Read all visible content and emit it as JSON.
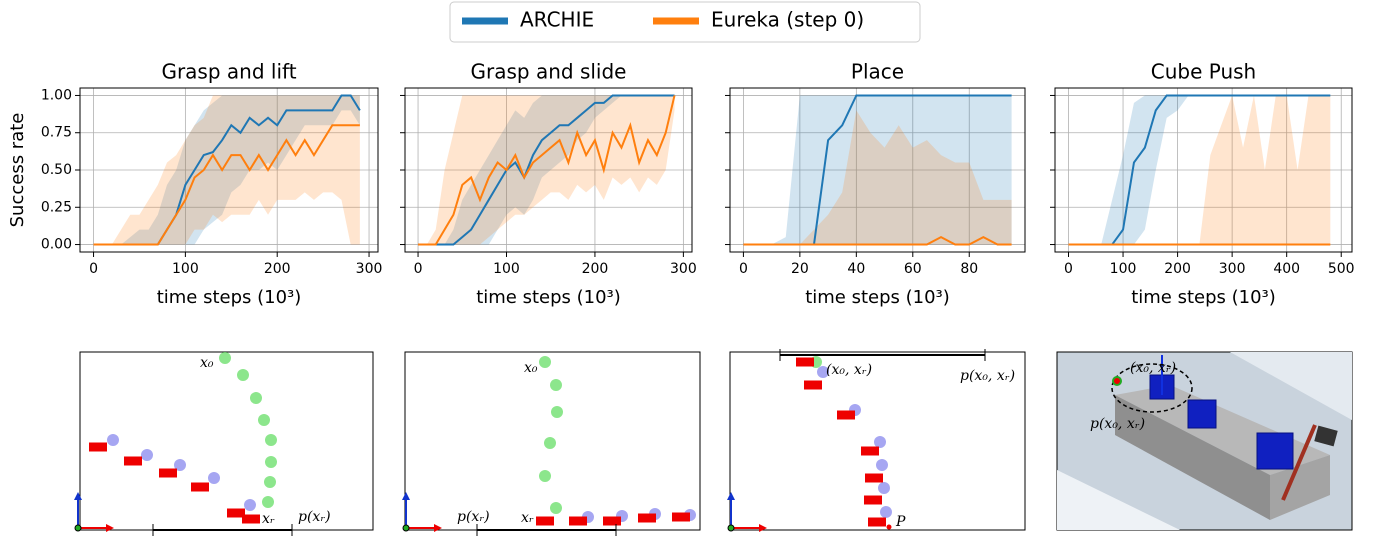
{
  "chart_data": [
    {
      "type": "line",
      "title": "Grasp and lift",
      "xlabel": "time steps (10³)",
      "ylabel": "Success rate",
      "x": [
        0,
        10,
        20,
        30,
        40,
        50,
        60,
        70,
        80,
        90,
        100,
        110,
        120,
        130,
        140,
        150,
        160,
        170,
        180,
        190,
        200,
        210,
        220,
        230,
        240,
        250,
        260,
        270,
        280,
        290
      ],
      "xlim": [
        -14.75,
        309.75
      ],
      "xticks": [
        0,
        100,
        200,
        300
      ],
      "ylim": [
        -0.05,
        1.05
      ],
      "yticks": [
        {
          "value": 0,
          "label": "0.00"
        },
        {
          "value": 0.25,
          "label": "0.25"
        },
        {
          "value": 0.5,
          "label": "0.50"
        },
        {
          "value": 0.75,
          "label": "0.75"
        },
        {
          "value": 1,
          "label": "1.00"
        }
      ],
      "grid": true,
      "series": [
        {
          "name": "ARCHIE",
          "color": "#1f77b4",
          "values": [
            0,
            0,
            0,
            0,
            0,
            0,
            0,
            0,
            0.1,
            0.2,
            0.4,
            0.5,
            0.6,
            0.62,
            0.7,
            0.8,
            0.75,
            0.85,
            0.8,
            0.85,
            0.8,
            0.9,
            0.9,
            0.9,
            0.9,
            0.9,
            0.9,
            1,
            1,
            0.9
          ],
          "lower": [
            0,
            0,
            0,
            0,
            0,
            0,
            0,
            0,
            0,
            0,
            0,
            0,
            0.1,
            0.15,
            0.2,
            0.35,
            0.4,
            0.5,
            0.5,
            0.55,
            0.5,
            0.6,
            0.7,
            0.8,
            0.8,
            0.8,
            0.8,
            0.9,
            0.9,
            0.8
          ],
          "upper": [
            0,
            0,
            0,
            0,
            0.05,
            0.1,
            0.1,
            0.2,
            0.4,
            0.5,
            0.7,
            0.8,
            0.9,
            0.95,
            1,
            1,
            1,
            1,
            1,
            1,
            1,
            1,
            1,
            1,
            1,
            1,
            1,
            1,
            1,
            1
          ]
        },
        {
          "name": "Eureka (step 0)",
          "color": "#ff7f0e",
          "values": [
            0,
            0,
            0,
            0,
            0,
            0,
            0,
            0,
            0.1,
            0.2,
            0.3,
            0.45,
            0.5,
            0.6,
            0.5,
            0.6,
            0.6,
            0.5,
            0.6,
            0.5,
            0.6,
            0.7,
            0.6,
            0.7,
            0.6,
            0.7,
            0.8,
            0.8,
            0.8,
            0.8
          ],
          "lower": [
            0,
            0,
            0,
            0,
            0,
            0,
            0,
            0,
            0,
            0,
            0,
            0.1,
            0.1,
            0.2,
            0.15,
            0.2,
            0.2,
            0.2,
            0.3,
            0.2,
            0.3,
            0.3,
            0.3,
            0.35,
            0.3,
            0.35,
            0.35,
            0.3,
            0,
            0
          ],
          "upper": [
            0,
            0,
            0,
            0.1,
            0.2,
            0.2,
            0.3,
            0.4,
            0.55,
            0.6,
            0.7,
            0.8,
            0.85,
            1,
            1,
            1,
            1,
            1,
            1,
            1,
            1,
            1,
            1,
            1,
            1,
            1,
            1,
            1,
            1,
            1
          ]
        }
      ]
    },
    {
      "type": "line",
      "title": "Grasp and slide",
      "xlabel": "time steps (10³)",
      "x": [
        0,
        10,
        20,
        30,
        40,
        50,
        60,
        70,
        80,
        90,
        100,
        110,
        120,
        130,
        140,
        150,
        160,
        170,
        180,
        190,
        200,
        210,
        220,
        230,
        240,
        250,
        260,
        270,
        280,
        290
      ],
      "xlim": [
        -14.75,
        309.75
      ],
      "xticks": [
        0,
        100,
        200,
        300
      ],
      "ylim": [
        -0.05,
        1.05
      ],
      "yticks": [
        0,
        0.25,
        0.5,
        0.75,
        1
      ],
      "grid": true,
      "series": [
        {
          "color": "#1f77b4",
          "values": [
            0,
            0,
            0,
            0,
            0,
            0.05,
            0.1,
            0.2,
            0.3,
            0.4,
            0.5,
            0.55,
            0.45,
            0.6,
            0.7,
            0.75,
            0.8,
            0.8,
            0.85,
            0.9,
            0.95,
            0.95,
            1,
            1,
            1,
            1,
            1,
            1,
            1,
            1
          ],
          "lower": [
            0,
            0,
            0,
            0,
            0,
            0,
            0,
            0,
            0,
            0.1,
            0.2,
            0.25,
            0.2,
            0.3,
            0.45,
            0.5,
            0.55,
            0.6,
            0.7,
            0.75,
            0.85,
            0.9,
            0.95,
            1,
            1,
            1,
            1,
            1,
            1,
            1
          ],
          "upper": [
            0,
            0,
            0,
            0,
            0.1,
            0.3,
            0.4,
            0.5,
            0.6,
            0.7,
            0.8,
            0.9,
            0.85,
            0.95,
            1,
            1,
            1,
            1,
            1,
            1,
            1,
            1,
            1,
            1,
            1,
            1,
            1,
            1,
            1,
            1
          ]
        },
        {
          "color": "#ff7f0e",
          "values": [
            0,
            0,
            0,
            0.1,
            0.2,
            0.4,
            0.45,
            0.3,
            0.45,
            0.55,
            0.5,
            0.6,
            0.45,
            0.55,
            0.6,
            0.65,
            0.7,
            0.55,
            0.75,
            0.6,
            0.7,
            0.5,
            0.75,
            0.65,
            0.8,
            0.55,
            0.7,
            0.6,
            0.75,
            1
          ],
          "lower": [
            0,
            0,
            0,
            0,
            0,
            0,
            0,
            0,
            0.05,
            0.1,
            0.15,
            0.2,
            0.2,
            0.25,
            0.3,
            0.35,
            0.35,
            0.3,
            0.4,
            0.35,
            0.4,
            0.3,
            0.45,
            0.4,
            0.45,
            0.35,
            0.45,
            0.4,
            0.5,
            0.9
          ],
          "upper": [
            0,
            0,
            0.1,
            0.5,
            0.75,
            1,
            1,
            1,
            1,
            1,
            1,
            1,
            1,
            1,
            1,
            1,
            1,
            1,
            1,
            1,
            1,
            1,
            1,
            1,
            1,
            1,
            1,
            1,
            1,
            1
          ]
        }
      ]
    },
    {
      "type": "line",
      "title": "Place",
      "xlabel": "time steps (10³)",
      "x": [
        0,
        5,
        10,
        15,
        20,
        25,
        30,
        35,
        40,
        45,
        50,
        55,
        60,
        65,
        70,
        75,
        80,
        85,
        90,
        95
      ],
      "xlim": [
        -4.75,
        99.75
      ],
      "xticks": [
        0,
        20,
        40,
        60,
        80
      ],
      "ylim": [
        -0.05,
        1.05
      ],
      "yticks": [
        0,
        0.25,
        0.5,
        0.75,
        1
      ],
      "grid": true,
      "series": [
        {
          "color": "#1f77b4",
          "values": [
            0,
            0,
            0,
            0,
            0,
            0,
            0.7,
            0.8,
            1,
            1,
            1,
            1,
            1,
            1,
            1,
            1,
            1,
            1,
            1,
            1
          ],
          "lower": [
            0,
            0,
            0,
            0,
            0,
            0,
            0,
            0,
            0,
            0,
            0,
            0,
            0,
            0,
            0,
            0,
            0,
            0,
            0,
            0
          ],
          "upper": [
            0,
            0,
            0,
            0.05,
            1,
            1,
            1,
            1,
            1,
            1,
            1,
            1,
            1,
            1,
            1,
            1,
            1,
            1,
            1,
            1
          ]
        },
        {
          "color": "#ff7f0e",
          "values": [
            0,
            0,
            0,
            0,
            0,
            0,
            0,
            0,
            0,
            0,
            0,
            0,
            0,
            0,
            0.05,
            0,
            0,
            0.05,
            0,
            0
          ],
          "lower": [
            0,
            0,
            0,
            0,
            0,
            0,
            0,
            0,
            0,
            0,
            0,
            0,
            0,
            0,
            0,
            0,
            0,
            0,
            0,
            0
          ],
          "upper": [
            0,
            0,
            0,
            0,
            0,
            0.1,
            0.2,
            0.35,
            0.9,
            0.75,
            0.65,
            0.8,
            0.65,
            0.7,
            0.6,
            0.55,
            0.55,
            0.3,
            0.3,
            0.3
          ]
        }
      ]
    },
    {
      "type": "line",
      "title": "Cube Push",
      "xlabel": "time steps (10³)",
      "x": [
        0,
        20,
        40,
        60,
        80,
        100,
        120,
        140,
        160,
        180,
        200,
        220,
        240,
        260,
        280,
        300,
        320,
        340,
        360,
        380,
        400,
        420,
        440,
        460,
        480
      ],
      "xlim": [
        -24.75,
        519.75
      ],
      "xticks": [
        0,
        100,
        200,
        300,
        400,
        500
      ],
      "ylim": [
        -0.05,
        1.05
      ],
      "yticks": [
        0,
        0.25,
        0.5,
        0.75,
        1
      ],
      "grid": true,
      "series": [
        {
          "color": "#1f77b4",
          "values": [
            0,
            0,
            0,
            0,
            0,
            0.1,
            0.55,
            0.65,
            0.9,
            1,
            1,
            1,
            1,
            1,
            1,
            1,
            1,
            1,
            1,
            1,
            1,
            1,
            1,
            1,
            1
          ],
          "lower": [
            0,
            0,
            0,
            0,
            0,
            0,
            0,
            0.1,
            0.5,
            0.85,
            0.9,
            1,
            1,
            1,
            1,
            1,
            1,
            1,
            1,
            1,
            1,
            1,
            1,
            1,
            1
          ],
          "upper": [
            0,
            0,
            0,
            0,
            0.3,
            0.6,
            0.95,
            1,
            1,
            1,
            1,
            1,
            1,
            1,
            1,
            1,
            1,
            1,
            1,
            1,
            1,
            1,
            1,
            1,
            1
          ]
        },
        {
          "color": "#ff7f0e",
          "values": [
            0,
            0,
            0,
            0,
            0,
            0,
            0,
            0,
            0,
            0,
            0,
            0,
            0,
            0,
            0,
            0,
            0,
            0,
            0,
            0,
            0,
            0,
            0,
            0,
            0
          ],
          "lower": [
            0,
            0,
            0,
            0,
            0,
            0,
            0,
            0,
            0,
            0,
            0,
            0,
            0,
            0,
            0,
            0,
            0,
            0,
            0,
            0,
            0,
            0,
            0,
            0,
            0
          ],
          "upper": [
            0,
            0,
            0,
            0,
            0,
            0,
            0,
            0,
            0,
            0,
            0,
            0,
            0,
            0.6,
            0.8,
            1,
            0.65,
            1,
            0.5,
            1,
            1,
            0.5,
            1,
            1,
            1
          ]
        }
      ]
    }
  ],
  "diagrams": [
    {
      "labels": [
        "x₀",
        "xᵣ",
        "p(xᵣ)"
      ]
    },
    {
      "labels": [
        "x₀",
        "p(xᵣ)",
        "xᵣ"
      ]
    },
    {
      "labels": [
        "(x₀, xᵣ)",
        "p(x₀, xᵣ)",
        "P"
      ]
    },
    {
      "labels": [
        "(x₀, xᵣ)",
        "p(x₀, xᵣ)"
      ]
    }
  ]
}
